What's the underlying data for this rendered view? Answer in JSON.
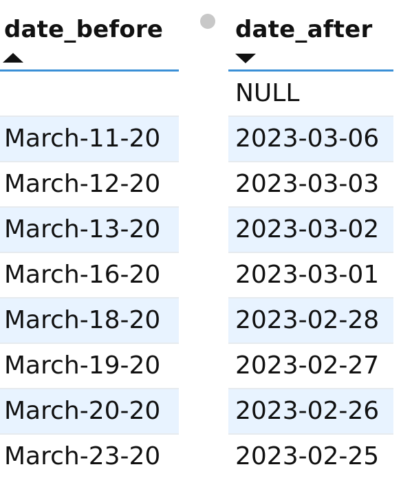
{
  "columns": [
    {
      "title": "date_before",
      "sort": "ascending",
      "sort_icon": "sort-ascending-icon"
    },
    {
      "title": "date_after",
      "sort": "descending",
      "sort_icon": "sort-descending-icon"
    }
  ],
  "rows": [
    {
      "date_before": "",
      "date_after": "NULL"
    },
    {
      "date_before": "March-11-20",
      "date_after": "2023-03-06"
    },
    {
      "date_before": "March-12-20",
      "date_after": "2023-03-03"
    },
    {
      "date_before": "March-13-20",
      "date_after": "2023-03-02"
    },
    {
      "date_before": "March-16-20",
      "date_after": "2023-03-01"
    },
    {
      "date_before": "March-18-20",
      "date_after": "2023-02-28"
    },
    {
      "date_before": "March-19-20",
      "date_after": "2023-02-27"
    },
    {
      "date_before": "March-20-20",
      "date_after": "2023-02-26"
    },
    {
      "date_before": "March-23-20",
      "date_after": "2023-02-25"
    }
  ],
  "colors": {
    "header_rule": "#3a8fd6",
    "alt_row": "#e8f3ff",
    "row_divider": "#e6eaee",
    "text": "#111111",
    "drag_handle": "#c8c8c8"
  }
}
